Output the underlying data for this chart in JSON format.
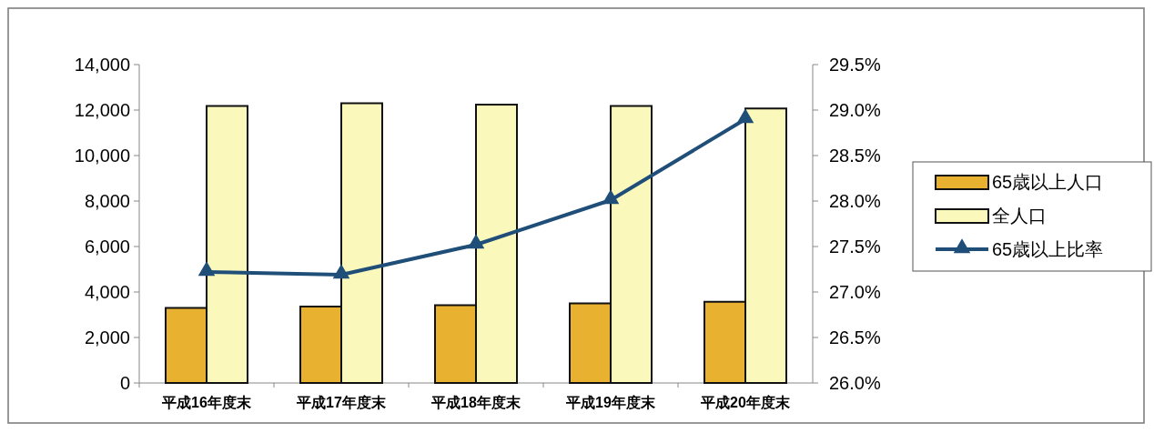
{
  "chart_data": {
    "type": "bar",
    "categories": [
      "平成16年度末",
      "平成17年度末",
      "平成18年度末",
      "平成19年度末",
      "平成20年度末"
    ],
    "series": [
      {
        "name": "65歳以上人口",
        "color": "#e8b230",
        "values": [
          3300,
          3360,
          3420,
          3500,
          3570
        ]
      },
      {
        "name": "全人口",
        "color": "#fbf8bc",
        "values": [
          12180,
          12300,
          12240,
          12180,
          12070
        ]
      },
      {
        "name": "65歳以上比率",
        "type": "line",
        "axis": "y2",
        "color": "#1f4e79",
        "values": [
          27.22,
          27.19,
          27.52,
          28.01,
          28.9
        ]
      }
    ],
    "ylim": [
      0,
      14000
    ],
    "yticks": [
      {
        "value": 0,
        "label": "0"
      },
      {
        "value": 2000,
        "label": "2,000"
      },
      {
        "value": 4000,
        "label": "4,000"
      },
      {
        "value": 6000,
        "label": "6,000"
      },
      {
        "value": 8000,
        "label": "8,000"
      },
      {
        "value": 10000,
        "label": "10,000"
      },
      {
        "value": 12000,
        "label": "12,000"
      },
      {
        "value": 14000,
        "label": "14,000"
      }
    ],
    "y2lim": [
      26,
      29.5
    ],
    "y2ticks": [
      {
        "value": 26,
        "label": "26.0%"
      },
      {
        "value": 26.5,
        "label": "26.5%"
      },
      {
        "value": 27,
        "label": "27.0%"
      },
      {
        "value": 27.5,
        "label": "27.5%"
      },
      {
        "value": 28,
        "label": "28.0%"
      },
      {
        "value": 28.5,
        "label": "28.5%"
      },
      {
        "value": 29,
        "label": "29.0%"
      },
      {
        "value": 29.5,
        "label": "29.5%"
      }
    ],
    "legend": "right",
    "marker": "triangle",
    "grid": false
  }
}
